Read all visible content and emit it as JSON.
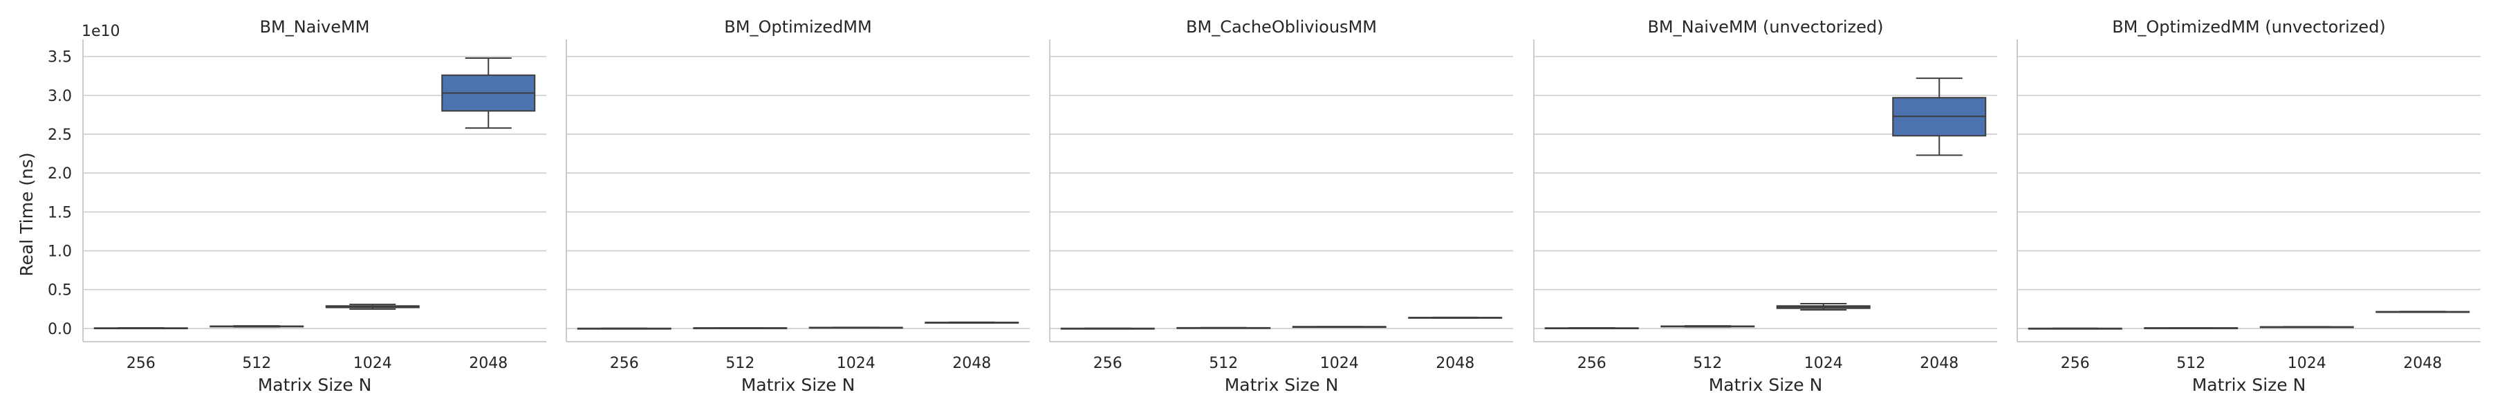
{
  "chart_data": {
    "type": "box",
    "ylabel": "Real Time (ns)",
    "y_offset_label": "1e10",
    "y_ticks": [
      "0.0",
      "0.5",
      "1.0",
      "1.5",
      "2.0",
      "2.5",
      "3.0",
      "3.5"
    ],
    "ylim": [
      -0.17,
      3.72
    ],
    "y_unit_scale": 10000000000.0,
    "grid": "horizontal",
    "box_color": "#4c72b0",
    "panels": [
      {
        "title": "BM_NaiveMM",
        "xlabel": "Matrix Size N",
        "categories": [
          "256",
          "512",
          "1024",
          "2048"
        ],
        "boxes": [
          {
            "min": 0.0,
            "q1": 0.002,
            "median": 0.004,
            "q3": 0.006,
            "max": 0.008
          },
          {
            "min": 0.02,
            "q1": 0.024,
            "median": 0.027,
            "q3": 0.03,
            "max": 0.034
          },
          {
            "min": 0.25,
            "q1": 0.27,
            "median": 0.28,
            "q3": 0.29,
            "max": 0.31
          },
          {
            "min": 2.58,
            "q1": 2.8,
            "median": 3.03,
            "q3": 3.26,
            "max": 3.48
          }
        ]
      },
      {
        "title": "BM_OptimizedMM",
        "xlabel": "Matrix Size N",
        "categories": [
          "256",
          "512",
          "1024",
          "2048"
        ],
        "boxes": [
          {
            "min": -0.002,
            "q1": -0.001,
            "median": 0.0,
            "q3": 0.001,
            "max": 0.002
          },
          {
            "min": 0.004,
            "q1": 0.005,
            "median": 0.006,
            "q3": 0.007,
            "max": 0.008
          },
          {
            "min": 0.01,
            "q1": 0.011,
            "median": 0.012,
            "q3": 0.013,
            "max": 0.014
          },
          {
            "min": 0.072,
            "q1": 0.074,
            "median": 0.076,
            "q3": 0.078,
            "max": 0.08
          }
        ]
      },
      {
        "title": "BM_CacheObliviousMM",
        "xlabel": "Matrix Size N",
        "categories": [
          "256",
          "512",
          "1024",
          "2048"
        ],
        "boxes": [
          {
            "min": -0.002,
            "q1": -0.001,
            "median": 0.0,
            "q3": 0.001,
            "max": 0.002
          },
          {
            "min": 0.006,
            "q1": 0.007,
            "median": 0.008,
            "q3": 0.009,
            "max": 0.01
          },
          {
            "min": 0.02,
            "q1": 0.021,
            "median": 0.022,
            "q3": 0.023,
            "max": 0.024
          },
          {
            "min": 0.135,
            "q1": 0.137,
            "median": 0.139,
            "q3": 0.141,
            "max": 0.143
          }
        ]
      },
      {
        "title": "BM_NaiveMM (unvectorized)",
        "xlabel": "Matrix Size N",
        "categories": [
          "256",
          "512",
          "1024",
          "2048"
        ],
        "boxes": [
          {
            "min": 0.0,
            "q1": 0.002,
            "median": 0.004,
            "q3": 0.006,
            "max": 0.008
          },
          {
            "min": 0.02,
            "q1": 0.024,
            "median": 0.027,
            "q3": 0.03,
            "max": 0.034
          },
          {
            "min": 0.24,
            "q1": 0.26,
            "median": 0.28,
            "q3": 0.29,
            "max": 0.32
          },
          {
            "min": 2.23,
            "q1": 2.48,
            "median": 2.73,
            "q3": 2.97,
            "max": 3.22
          }
        ]
      },
      {
        "title": "BM_OptimizedMM (unvectorized)",
        "xlabel": "Matrix Size N",
        "categories": [
          "256",
          "512",
          "1024",
          "2048"
        ],
        "boxes": [
          {
            "min": -0.002,
            "q1": -0.001,
            "median": 0.0,
            "q3": 0.001,
            "max": 0.002
          },
          {
            "min": 0.004,
            "q1": 0.005,
            "median": 0.006,
            "q3": 0.007,
            "max": 0.008
          },
          {
            "min": 0.018,
            "q1": 0.019,
            "median": 0.02,
            "q3": 0.021,
            "max": 0.022
          },
          {
            "min": 0.21,
            "q1": 0.212,
            "median": 0.214,
            "q3": 0.216,
            "max": 0.218
          }
        ]
      }
    ]
  }
}
